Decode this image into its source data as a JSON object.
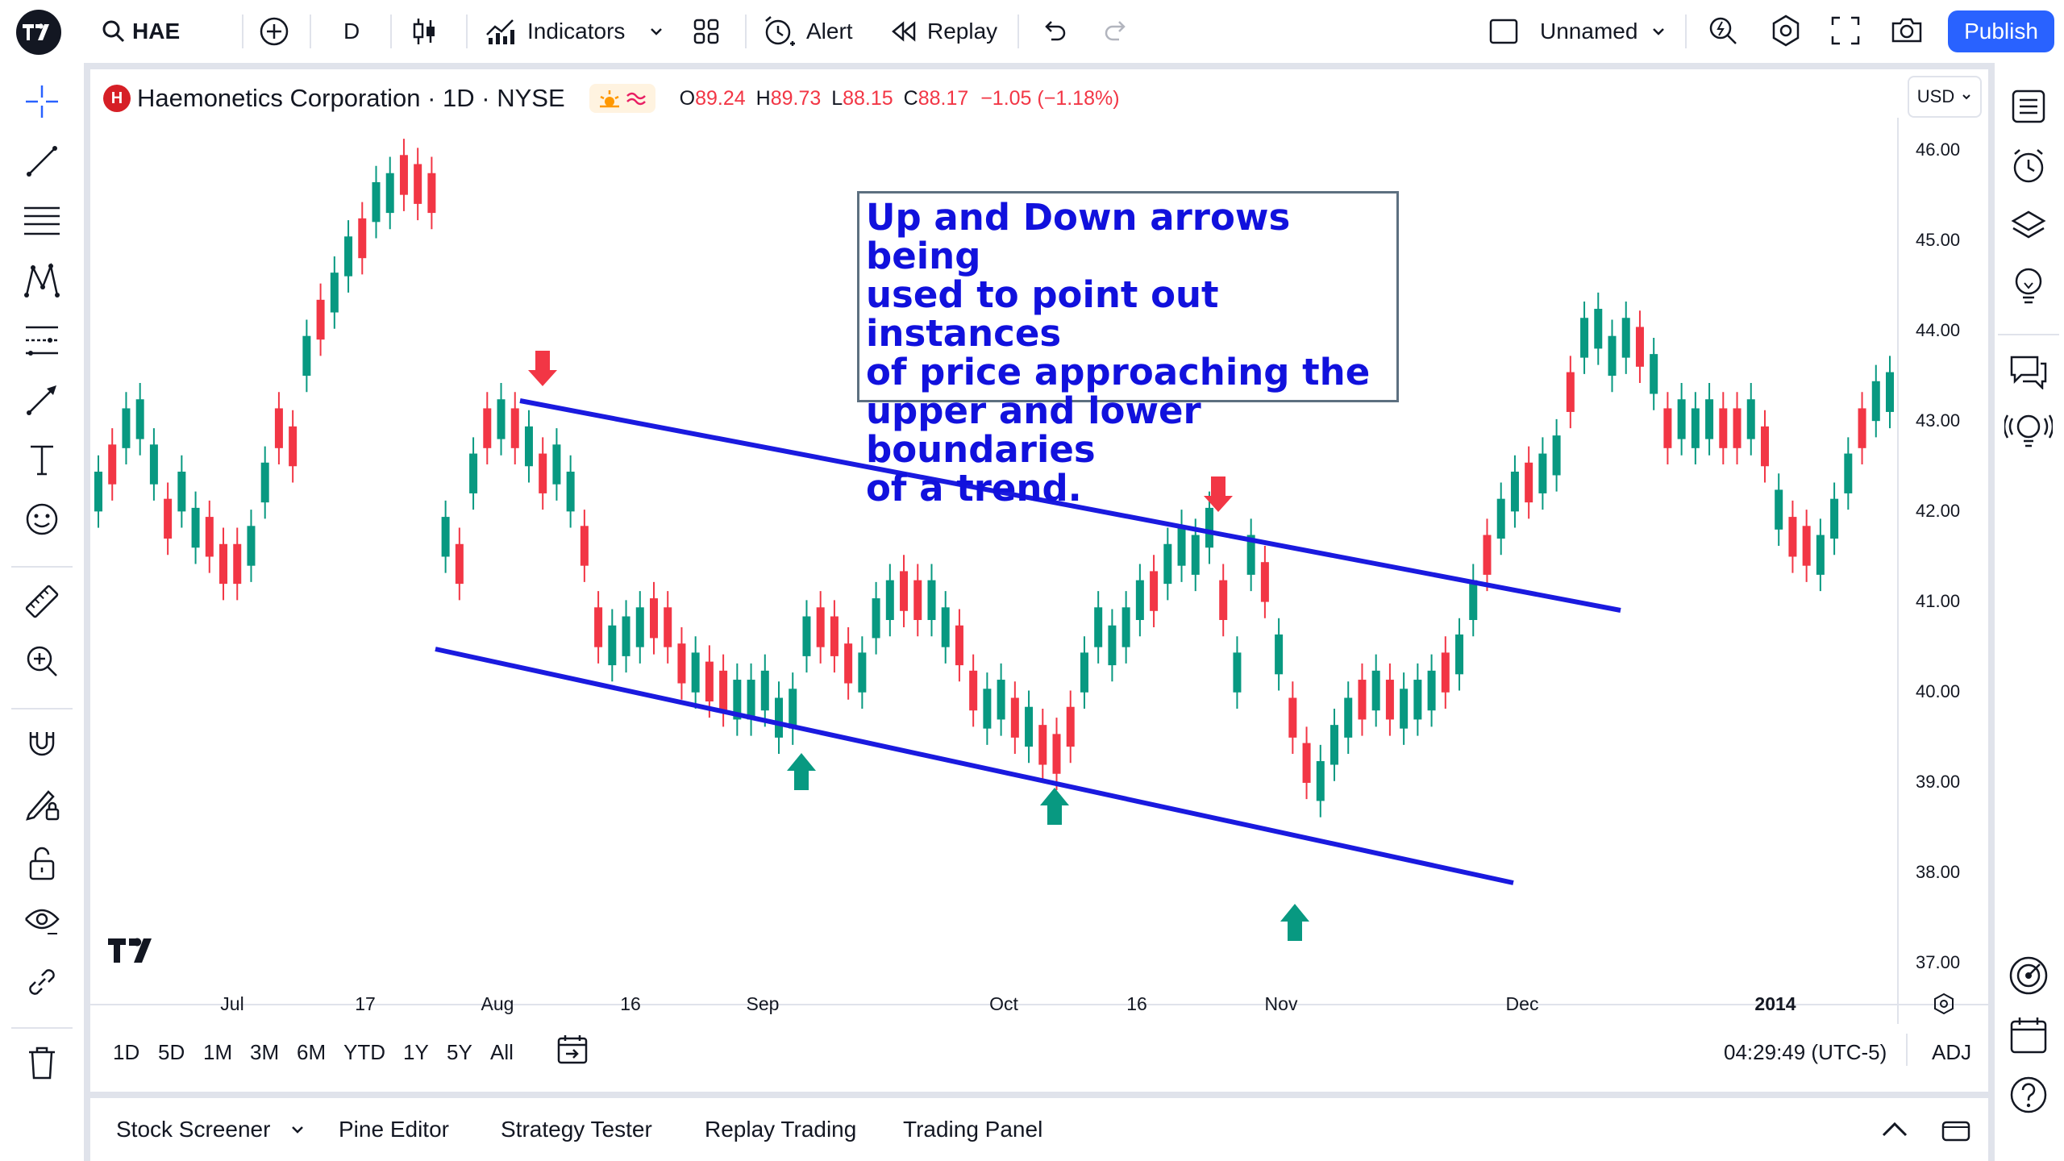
{
  "toolbar": {
    "symbol": "HAE",
    "interval": "D",
    "indicators_label": "Indicators",
    "alert_label": "Alert",
    "replay_label": "Replay",
    "layout_name": "Unnamed",
    "publish_label": "Publish"
  },
  "legend": {
    "title": "Haemonetics Corporation · 1D · NYSE",
    "logo_letter": "H",
    "open_key": "O",
    "open": "89.24",
    "high_key": "H",
    "high": "89.73",
    "low_key": "L",
    "low": "88.15",
    "close_key": "C",
    "close": "88.17",
    "change": "−1.05 (−1.18%)"
  },
  "currency": "USD",
  "annotation": {
    "lines": [
      "Up and Down arrows being",
      "used to point out instances",
      "of price approaching the",
      "upper and lower boundaries",
      "of a trend."
    ]
  },
  "price_axis": [
    "46.00",
    "45.00",
    "44.00",
    "43.00",
    "42.00",
    "41.00",
    "40.00",
    "39.00",
    "38.00",
    "37.00"
  ],
  "time_axis": [
    "Jul",
    "17",
    "Aug",
    "16",
    "Sep",
    "Oct",
    "16",
    "Nov",
    "Dec",
    "2014"
  ],
  "range_buttons": [
    "1D",
    "5D",
    "1M",
    "3M",
    "6M",
    "YTD",
    "1Y",
    "5Y",
    "All"
  ],
  "clock": "04:29:49 (UTC-5)",
  "adj_label": "ADJ",
  "bottom_tabs": [
    "Stock Screener",
    "Pine Editor",
    "Strategy Tester",
    "Replay Trading",
    "Trading Panel"
  ],
  "colors": {
    "up": "#089981",
    "down": "#f23645",
    "trend": "#1a1adf",
    "accent": "#2962ff"
  }
}
